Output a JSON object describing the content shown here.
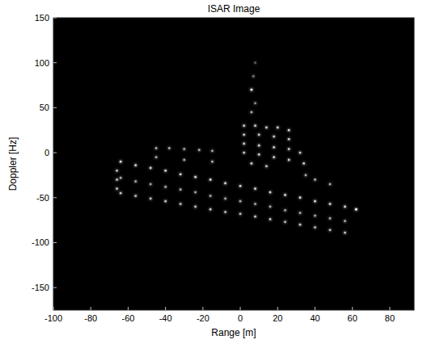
{
  "chart_data": {
    "type": "scatter",
    "title": "ISAR Image",
    "x_label": "Range [m]",
    "y_label": "Doppler [Hz]",
    "x": [
      -64,
      -56,
      -48,
      -40,
      -32,
      -24,
      -16,
      -8,
      0,
      8,
      16,
      24,
      32,
      40,
      48,
      56,
      -64,
      -56,
      -48,
      -40,
      -32,
      -24,
      -16,
      -8,
      0,
      8,
      16,
      24,
      32,
      40,
      48,
      56,
      -64,
      -56,
      -48,
      -40,
      -32,
      -24,
      -16,
      -8,
      0,
      8,
      16,
      24,
      32,
      40,
      48,
      56,
      -66,
      -66,
      -66,
      62,
      -45,
      -38,
      -30,
      -22,
      -15,
      -45,
      -30,
      -15,
      2,
      8,
      14,
      20,
      26,
      2,
      10,
      18,
      26,
      2,
      10,
      18,
      26,
      32,
      2,
      10,
      18,
      26,
      34,
      6,
      14,
      6,
      8,
      6,
      7,
      8,
      40,
      48,
      35
    ],
    "values": [
      -10,
      -14,
      -17,
      -20,
      -24,
      -27,
      -30,
      -34,
      -37,
      -40,
      -44,
      -47,
      -50,
      -54,
      -57,
      -60,
      -28,
      -32,
      -35,
      -38,
      -41,
      -44,
      -48,
      -51,
      -54,
      -57,
      -60,
      -64,
      -67,
      -70,
      -73,
      -76,
      -45,
      -48,
      -51,
      -54,
      -57,
      -60,
      -63,
      -66,
      -68,
      -71,
      -74,
      -77,
      -80,
      -83,
      -86,
      -89,
      -20,
      -30,
      -40,
      -63,
      5,
      5,
      4,
      3,
      2,
      -5,
      -8,
      -10,
      30,
      30,
      28,
      28,
      25,
      20,
      20,
      18,
      15,
      10,
      8,
      6,
      4,
      0,
      0,
      -2,
      -5,
      -8,
      -12,
      -12,
      -15,
      45,
      55,
      70,
      85,
      100,
      -30,
      -35,
      -25
    ],
    "intensity": [
      0.8,
      0.8,
      0.8,
      0.8,
      0.8,
      0.8,
      0.8,
      0.8,
      0.8,
      0.8,
      0.8,
      0.8,
      0.8,
      0.8,
      0.8,
      0.8,
      0.6,
      0.6,
      0.6,
      0.6,
      0.6,
      0.6,
      0.6,
      0.6,
      0.6,
      0.6,
      0.6,
      0.6,
      0.6,
      0.6,
      0.6,
      0.6,
      0.7,
      0.7,
      0.7,
      0.7,
      0.7,
      0.7,
      0.7,
      0.7,
      0.7,
      0.7,
      0.7,
      0.7,
      0.7,
      0.7,
      0.7,
      0.7,
      0.7,
      0.7,
      0.7,
      1,
      0.6,
      0.6,
      0.6,
      0.6,
      0.6,
      0.6,
      0.6,
      0.6,
      0.75,
      0.75,
      0.75,
      0.75,
      0.75,
      0.75,
      0.75,
      0.75,
      0.75,
      0.75,
      0.75,
      0.75,
      0.75,
      0.75,
      0.75,
      0.75,
      0.75,
      0.75,
      0.75,
      0.75,
      0.75,
      0.6,
      0.5,
      1,
      0.4,
      0.3,
      0.6,
      0.6,
      0.6
    ],
    "color": "#ffffff",
    "xlim": [
      -100,
      93
    ],
    "ylim": [
      -175,
      150
    ],
    "xticks": [
      -100,
      -80,
      -60,
      -40,
      -20,
      0,
      20,
      40,
      60,
      80
    ],
    "yticks": [
      -150,
      -100,
      -50,
      0,
      50,
      100,
      150
    ],
    "grid": false
  }
}
